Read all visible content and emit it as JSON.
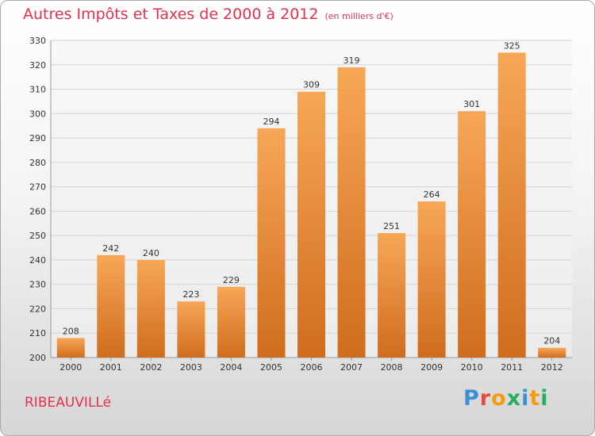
{
  "header": {
    "title": "Autres Impôts et Taxes de 2000 à 2012",
    "unit": "(en milliers d'€)"
  },
  "footer": {
    "commune": "RIBEAUVILLé",
    "logo": "Proxiti"
  },
  "colors": {
    "title": "#e0324f",
    "bar_light": "#f7a757",
    "bar_dark": "#cf6d1d",
    "grid": "#d4d4d4",
    "logo_letters": [
      "#3a8fd6",
      "#e94b3c",
      "#f39c12",
      "#27ae60",
      "#3a8fd6",
      "#f39c12",
      "#27ae60"
    ]
  },
  "chart_data": {
    "type": "bar",
    "title": "Autres Impôts et Taxes de 2000 à 2012",
    "subtitle": "(en milliers d'€)",
    "xlabel": "",
    "ylabel": "",
    "categories": [
      "2000",
      "2001",
      "2002",
      "2003",
      "2004",
      "2005",
      "2006",
      "2007",
      "2008",
      "2009",
      "2010",
      "2011",
      "2012"
    ],
    "values": [
      208,
      242,
      240,
      223,
      229,
      294,
      309,
      319,
      251,
      264,
      301,
      325,
      204
    ],
    "ylim": [
      200,
      330
    ],
    "yticks": [
      200,
      210,
      220,
      230,
      240,
      250,
      260,
      270,
      280,
      290,
      300,
      310,
      320,
      330
    ],
    "grid": true,
    "legend": "none"
  }
}
